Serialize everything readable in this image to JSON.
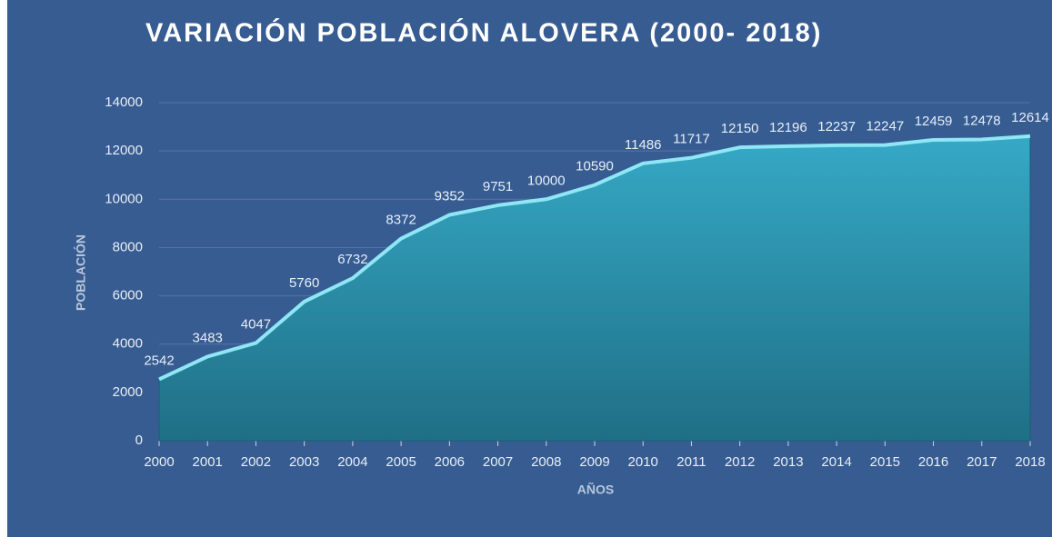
{
  "chart_data": {
    "type": "area",
    "title": "VARIACIÓN POBLACIÓN ALOVERA (2000- 2018)",
    "x_label": "AÑOS",
    "y_label": "POBLACIÓN",
    "categories": [
      "2000",
      "2001",
      "2002",
      "2003",
      "2004",
      "2005",
      "2006",
      "2007",
      "2008",
      "2009",
      "2010",
      "2011",
      "2012",
      "2013",
      "2014",
      "2015",
      "2016",
      "2017",
      "2018"
    ],
    "values": [
      2542,
      3483,
      4047,
      5760,
      6732,
      8372,
      9352,
      9751,
      10000,
      10590,
      11486,
      11717,
      12150,
      12196,
      12237,
      12247,
      12459,
      12478,
      12614
    ],
    "color": "#2fa4bf",
    "ylim": [
      0,
      14000
    ],
    "yticks": [
      0,
      2000,
      4000,
      6000,
      8000,
      10000,
      12000,
      14000
    ],
    "grid": true
  }
}
